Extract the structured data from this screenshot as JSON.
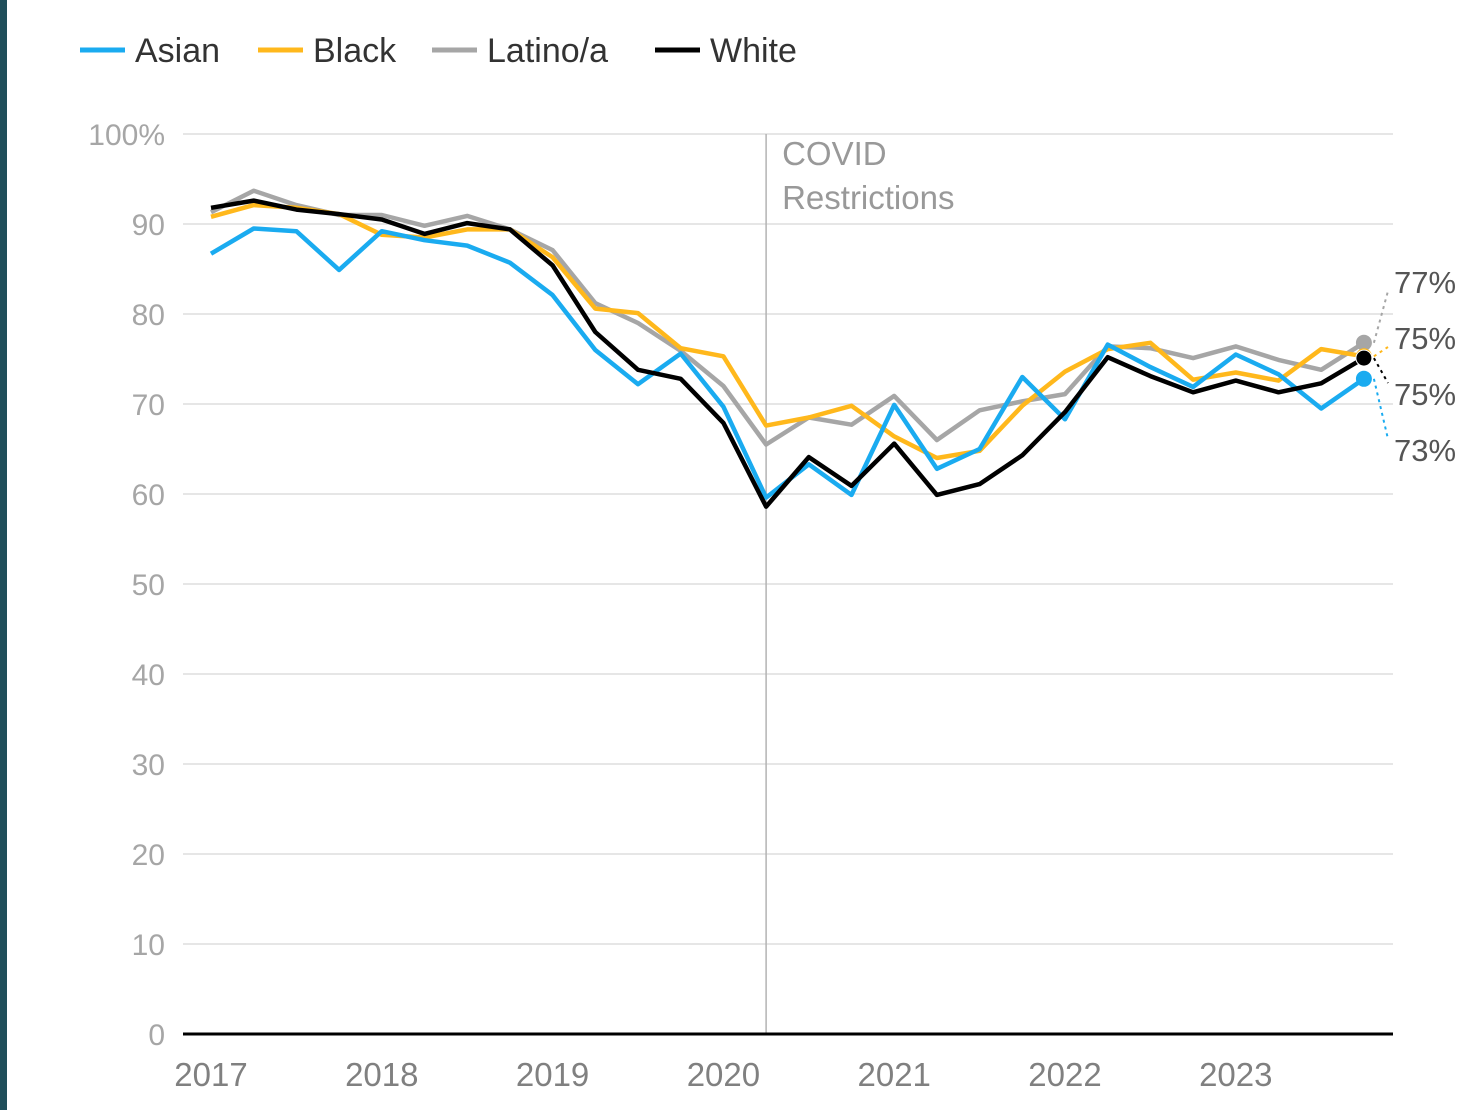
{
  "colors": {
    "edge_bar": "#1f4e5a",
    "grid": "#e6e6e6",
    "axis": "#000000",
    "covid_line": "#b3b3b3"
  },
  "chart_data": {
    "type": "line",
    "title": "",
    "xlabel": "",
    "ylabel": "",
    "xlim": [
      2017,
      2023.9
    ],
    "ylim": [
      0,
      100
    ],
    "grid": true,
    "legend_position": "top-left",
    "x_ticks": [
      "2017",
      "2018",
      "2019",
      "2020",
      "2021",
      "2022",
      "2023"
    ],
    "y_ticks": [
      "0",
      "10",
      "20",
      "30",
      "40",
      "50",
      "60",
      "70",
      "80",
      "90",
      "100%"
    ],
    "x": [
      2017.0,
      2017.25,
      2017.5,
      2017.75,
      2018.0,
      2018.25,
      2018.5,
      2018.75,
      2019.0,
      2019.25,
      2019.5,
      2019.75,
      2020.0,
      2020.25,
      2020.5,
      2020.75,
      2021.0,
      2021.25,
      2021.5,
      2021.75,
      2022.0,
      2022.25,
      2022.5,
      2022.75,
      2023.0,
      2023.25,
      2023.5,
      2023.75
    ],
    "series": [
      {
        "name": "Asian",
        "color": "#1aabf0",
        "values": [
          86.7,
          89.5,
          89.2,
          84.9,
          89.2,
          88.2,
          87.6,
          85.7,
          82.1,
          76.0,
          72.2,
          75.6,
          69.7,
          59.6,
          63.3,
          59.9,
          69.9,
          62.8,
          65.0,
          73.0,
          68.3,
          76.6,
          74.1,
          71.9,
          75.5,
          73.3,
          69.5,
          72.8
        ],
        "end_label": "73%"
      },
      {
        "name": "Black",
        "color": "#ffb81c",
        "values": [
          90.8,
          92.1,
          91.8,
          91.1,
          88.8,
          88.5,
          89.4,
          89.4,
          86.3,
          80.6,
          80.1,
          76.2,
          75.3,
          67.6,
          68.5,
          69.8,
          66.4,
          64.0,
          64.8,
          69.8,
          73.6,
          76.1,
          76.8,
          72.7,
          73.5,
          72.6,
          76.1,
          75.3
        ],
        "end_label": "75%"
      },
      {
        "name": "Latino/a",
        "color": "#a6a6a6",
        "values": [
          91.3,
          93.7,
          92.1,
          91.0,
          91.0,
          89.8,
          90.9,
          89.4,
          87.1,
          81.2,
          79.0,
          75.9,
          72.0,
          65.5,
          68.5,
          67.7,
          70.9,
          66.0,
          69.3,
          70.3,
          71.1,
          76.4,
          76.2,
          75.1,
          76.4,
          74.9,
          73.8,
          76.8
        ],
        "end_label": "77%"
      },
      {
        "name": "White",
        "color": "#000000",
        "values": [
          91.8,
          92.6,
          91.6,
          91.1,
          90.5,
          88.9,
          90.1,
          89.4,
          85.4,
          78.0,
          73.8,
          72.8,
          67.9,
          58.6,
          64.1,
          60.9,
          65.6,
          59.9,
          61.1,
          64.3,
          69.1,
          75.2,
          73.1,
          71.3,
          72.6,
          71.3,
          72.3,
          75.1
        ],
        "end_label": "75%"
      }
    ],
    "annotations": [
      {
        "x": 2020.25,
        "lines": [
          "COVID",
          "Restrictions"
        ]
      }
    ]
  }
}
